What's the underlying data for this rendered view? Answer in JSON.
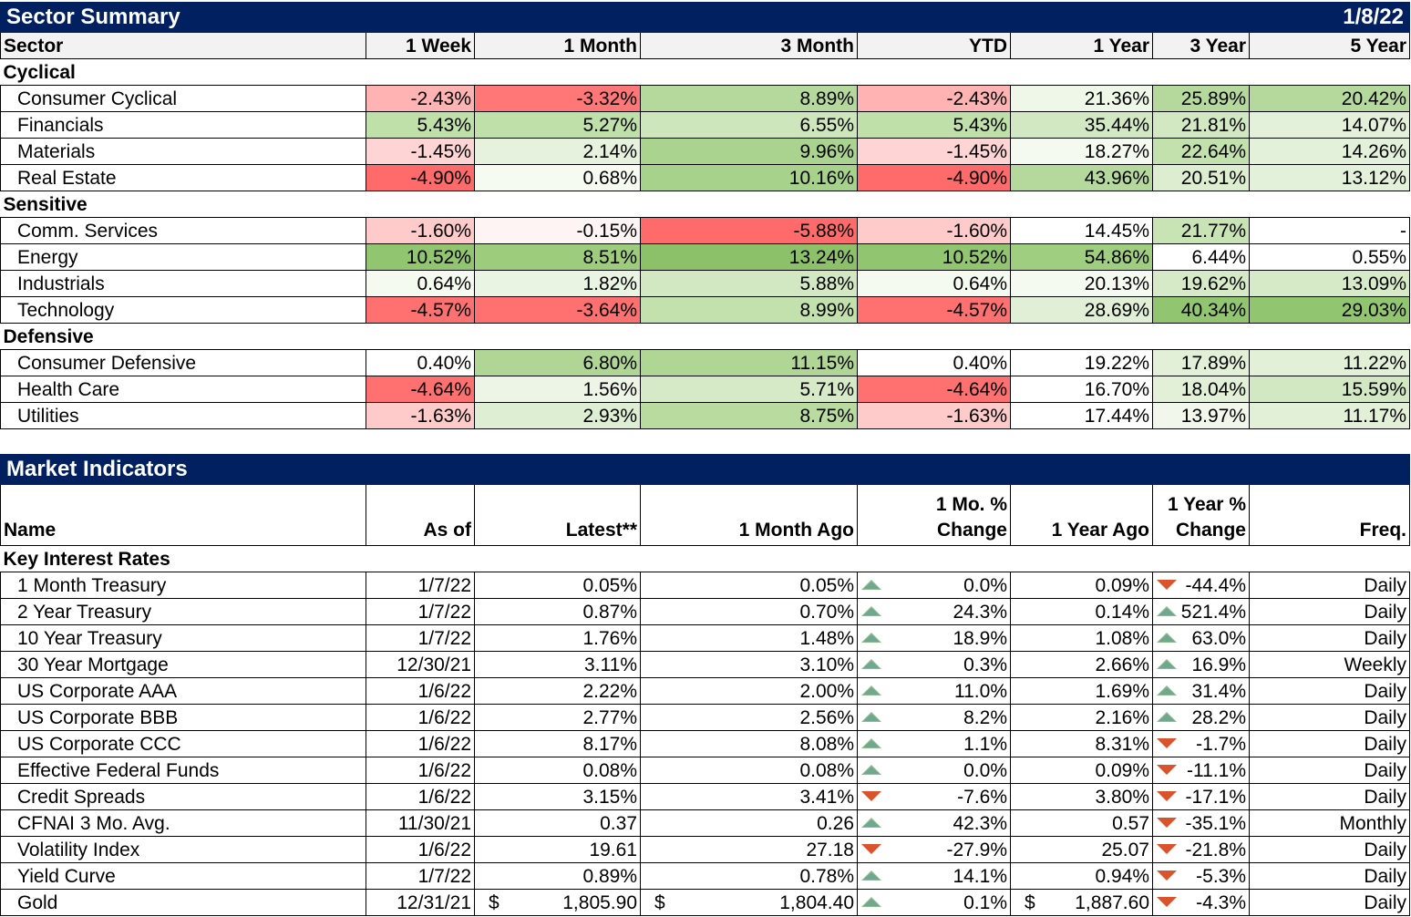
{
  "sector": {
    "title": "Sector Summary",
    "date": "1/8/22",
    "headers": [
      "Sector",
      "1 Week",
      "1 Month",
      "3 Month",
      "YTD",
      "1 Year",
      "3 Year",
      "5 Year"
    ],
    "groups": [
      {
        "name": "Cyclical",
        "rows": [
          {
            "name": "Consumer Cyclical",
            "values": [
              "-2.43%",
              "-3.32%",
              "8.89%",
              "-2.43%",
              "21.36%",
              "25.89%",
              "20.42%"
            ],
            "colors": [
              "#ffb3b3",
              "#ff7777",
              "#b5d99c",
              "#ffb3b3",
              "#eef7e8",
              "#b5d99c",
              "#b5d99c"
            ]
          },
          {
            "name": "Financials",
            "values": [
              "5.43%",
              "5.27%",
              "6.55%",
              "5.43%",
              "35.44%",
              "21.81%",
              "14.07%"
            ],
            "colors": [
              "#bfe0a8",
              "#bfe0a8",
              "#cde6bb",
              "#bfe0a8",
              "#d2e8c3",
              "#d2e8c3",
              "#e4f1da"
            ]
          },
          {
            "name": "Materials",
            "values": [
              "-1.45%",
              "2.14%",
              "9.96%",
              "-1.45%",
              "18.27%",
              "22.64%",
              "14.26%"
            ],
            "colors": [
              "#ffd4d4",
              "#e6f2de",
              "#a9d38e",
              "#ffd4d4",
              "#f4faef",
              "#c2e1ad",
              "#e4f1da"
            ]
          },
          {
            "name": "Real Estate",
            "values": [
              "-4.90%",
              "0.68%",
              "10.16%",
              "-4.90%",
              "43.96%",
              "20.51%",
              "13.12%"
            ],
            "colors": [
              "#ff6b6b",
              "#f6fbf2",
              "#a7d28b",
              "#ff6b6b",
              "#b5d99c",
              "#dcedd0",
              "#e4f1da"
            ]
          }
        ]
      },
      {
        "name": "Sensitive",
        "rows": [
          {
            "name": "Comm. Services",
            "values": [
              "-1.60%",
              "-0.15%",
              "-5.88%",
              "-1.60%",
              "14.45%",
              "21.77%",
              "-"
            ],
            "colors": [
              "#ffcaca",
              "#fff4f4",
              "#ff6b6b",
              "#ffcaca",
              "#ffffff",
              "#c8e3b4",
              "#ffffff"
            ]
          },
          {
            "name": "Energy",
            "values": [
              "10.52%",
              "8.51%",
              "13.24%",
              "10.52%",
              "54.86%",
              "6.44%",
              "0.55%"
            ],
            "colors": [
              "#92c56f",
              "#9dcc7c",
              "#8cc169",
              "#92c56f",
              "#a0ce80",
              "#ffffff",
              "#ffffff"
            ]
          },
          {
            "name": "Industrials",
            "values": [
              "0.64%",
              "1.82%",
              "5.88%",
              "0.64%",
              "20.13%",
              "19.62%",
              "13.09%"
            ],
            "colors": [
              "#f5faf1",
              "#e9f4e2",
              "#d2e8c3",
              "#f5faf1",
              "#f5faf1",
              "#d6eac8",
              "#d6eac8"
            ]
          },
          {
            "name": "Technology",
            "values": [
              "-4.57%",
              "-3.64%",
              "8.99%",
              "-4.57%",
              "28.69%",
              "40.34%",
              "29.03%"
            ],
            "colors": [
              "#ff7070",
              "#ff7070",
              "#c2e1ad",
              "#ff7070",
              "#e0efd5",
              "#92c56f",
              "#92c56f"
            ]
          }
        ]
      },
      {
        "name": "Defensive",
        "rows": [
          {
            "name": "Consumer Defensive",
            "values": [
              "0.40%",
              "6.80%",
              "11.15%",
              "0.40%",
              "19.22%",
              "17.89%",
              "11.22%"
            ],
            "colors": [
              "#ffffff",
              "#b0d696",
              "#b0d696",
              "#ffffff",
              "#ffffff",
              "#e2f0d8",
              "#e2f0d8"
            ]
          },
          {
            "name": "Health Care",
            "values": [
              "-4.64%",
              "1.56%",
              "5.71%",
              "-4.64%",
              "16.70%",
              "18.04%",
              "15.59%"
            ],
            "colors": [
              "#ff7070",
              "#edf6e6",
              "#d6eac8",
              "#ff7070",
              "#ffffff",
              "#e2f0d8",
              "#d2e8c3"
            ]
          },
          {
            "name": "Utilities",
            "values": [
              "-1.63%",
              "2.93%",
              "8.75%",
              "-1.63%",
              "17.44%",
              "13.97%",
              "11.17%"
            ],
            "colors": [
              "#ffcaca",
              "#deeed3",
              "#b9db9f",
              "#ffcaca",
              "#ffffff",
              "#f1f8eb",
              "#e2f0d8"
            ]
          }
        ]
      }
    ]
  },
  "market": {
    "title": "Market Indicators",
    "headers": {
      "name": "Name",
      "as_of": "As of",
      "latest": "Latest**",
      "month_ago": "1 Month Ago",
      "mo_change_l1": "1 Mo. %",
      "mo_change_l2": "Change",
      "year_ago": "1 Year Ago",
      "yr_change_l1": "1 Year %",
      "yr_change_l2": "Change",
      "freq": "Freq."
    },
    "group": "Key Interest Rates",
    "rows": [
      {
        "name": "1 Month Treasury",
        "as_of": "1/7/22",
        "latest": "0.05%",
        "month_ago": "0.05%",
        "mo_dir": "up",
        "mo_change": "0.0%",
        "year_ago": "0.09%",
        "yr_dir": "down",
        "yr_change": "-44.4%",
        "freq": "Daily"
      },
      {
        "name": "2 Year Treasury",
        "as_of": "1/7/22",
        "latest": "0.87%",
        "month_ago": "0.70%",
        "mo_dir": "up",
        "mo_change": "24.3%",
        "year_ago": "0.14%",
        "yr_dir": "up",
        "yr_change": "521.4%",
        "freq": "Daily"
      },
      {
        "name": "10 Year Treasury",
        "as_of": "1/7/22",
        "latest": "1.76%",
        "month_ago": "1.48%",
        "mo_dir": "up",
        "mo_change": "18.9%",
        "year_ago": "1.08%",
        "yr_dir": "up",
        "yr_change": "63.0%",
        "freq": "Daily"
      },
      {
        "name": "30 Year Mortgage",
        "as_of": "12/30/21",
        "latest": "3.11%",
        "month_ago": "3.10%",
        "mo_dir": "up",
        "mo_change": "0.3%",
        "year_ago": "2.66%",
        "yr_dir": "up",
        "yr_change": "16.9%",
        "freq": "Weekly"
      },
      {
        "name": "US Corporate AAA",
        "as_of": "1/6/22",
        "latest": "2.22%",
        "month_ago": "2.00%",
        "mo_dir": "up",
        "mo_change": "11.0%",
        "year_ago": "1.69%",
        "yr_dir": "up",
        "yr_change": "31.4%",
        "freq": "Daily"
      },
      {
        "name": "US Corporate BBB",
        "as_of": "1/6/22",
        "latest": "2.77%",
        "month_ago": "2.56%",
        "mo_dir": "up",
        "mo_change": "8.2%",
        "year_ago": "2.16%",
        "yr_dir": "up",
        "yr_change": "28.2%",
        "freq": "Daily"
      },
      {
        "name": "US Corporate CCC",
        "as_of": "1/6/22",
        "latest": "8.17%",
        "month_ago": "8.08%",
        "mo_dir": "up",
        "mo_change": "1.1%",
        "year_ago": "8.31%",
        "yr_dir": "down",
        "yr_change": "-1.7%",
        "freq": "Daily"
      },
      {
        "name": "Effective Federal Funds",
        "as_of": "1/6/22",
        "latest": "0.08%",
        "month_ago": "0.08%",
        "mo_dir": "up",
        "mo_change": "0.0%",
        "year_ago": "0.09%",
        "yr_dir": "down",
        "yr_change": "-11.1%",
        "freq": "Daily"
      },
      {
        "name": "Credit Spreads",
        "as_of": "1/6/22",
        "latest": "3.15%",
        "month_ago": "3.41%",
        "mo_dir": "down",
        "mo_change": "-7.6%",
        "year_ago": "3.80%",
        "yr_dir": "down",
        "yr_change": "-17.1%",
        "freq": "Daily"
      },
      {
        "name": "CFNAI 3 Mo. Avg.",
        "as_of": "11/30/21",
        "latest": "0.37",
        "month_ago": "0.26",
        "mo_dir": "up",
        "mo_change": "42.3%",
        "year_ago": "0.57",
        "yr_dir": "down",
        "yr_change": "-35.1%",
        "freq": "Monthly"
      },
      {
        "name": "Volatility Index",
        "as_of": "1/6/22",
        "latest": "19.61",
        "month_ago": "27.18",
        "mo_dir": "down",
        "mo_change": "-27.9%",
        "year_ago": "25.07",
        "yr_dir": "down",
        "yr_change": "-21.8%",
        "freq": "Daily"
      },
      {
        "name": "Yield Curve",
        "as_of": "1/7/22",
        "latest": "0.89%",
        "month_ago": "0.78%",
        "mo_dir": "up",
        "mo_change": "14.1%",
        "year_ago": "0.94%",
        "yr_dir": "down",
        "yr_change": "-5.3%",
        "freq": "Daily"
      },
      {
        "name": "Gold",
        "as_of": "12/31/21",
        "latest": "1,805.90",
        "latest_prefix": "$",
        "month_ago": "1,804.40",
        "month_ago_prefix": "$",
        "mo_dir": "up",
        "mo_change": "0.1%",
        "year_ago": "1,887.60",
        "year_ago_prefix": "$",
        "yr_dir": "down",
        "yr_change": "-4.3%",
        "freq": "Daily"
      }
    ]
  }
}
